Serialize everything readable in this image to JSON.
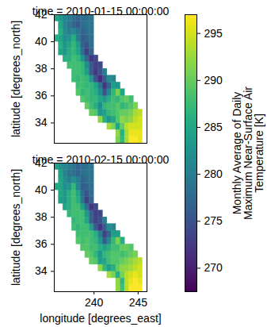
{
  "chart_data": {
    "type": "heatmap",
    "x_label": "longitude [degrees_east]",
    "y_label": "latitude [degrees_north]",
    "xlim": [
      235.5,
      246
    ],
    "ylim": [
      32.5,
      42
    ],
    "xticks": [
      240,
      245
    ],
    "yticks": [
      34,
      36,
      38,
      40,
      42
    ],
    "x": [
      235.75,
      236.25,
      236.75,
      237.25,
      237.75,
      238.25,
      238.75,
      239.25,
      239.75,
      240.25,
      240.75,
      241.25,
      241.75,
      242.25,
      242.75,
      243.25,
      243.75,
      244.25,
      244.75,
      245.25,
      245.75
    ],
    "y": [
      32.75,
      33.25,
      33.75,
      34.25,
      34.75,
      35.25,
      35.75,
      36.25,
      36.75,
      37.25,
      37.75,
      38.25,
      38.75,
      39.25,
      39.75,
      40.25,
      40.75,
      41.25,
      41.75
    ],
    "colorbar": {
      "label": "Monthly Average of Daily\nMaximum Near-Surface Air\nTemperature [K]",
      "range": [
        267.5,
        297
      ],
      "ticks": [
        270,
        275,
        280,
        285,
        290,
        295
      ],
      "color": "viridis"
    },
    "panels": [
      {
        "title": "time = 2010-01-15 00:00:00",
        "tick_labels": "y",
        "values": [
          [
            null,
            null,
            null,
            null,
            null,
            null,
            null,
            null,
            null,
            null,
            null,
            null,
            null,
            null,
            291,
            287,
            293,
            297,
            297,
            296,
            null
          ],
          [
            null,
            null,
            null,
            null,
            null,
            null,
            null,
            null,
            null,
            null,
            null,
            null,
            null,
            null,
            292,
            286,
            293,
            296,
            296,
            296,
            null
          ],
          [
            null,
            null,
            null,
            null,
            null,
            null,
            null,
            null,
            null,
            null,
            null,
            null,
            293,
            291,
            285,
            290,
            294,
            295,
            295,
            295,
            null
          ],
          [
            null,
            null,
            null,
            null,
            null,
            null,
            null,
            null,
            null,
            null,
            292,
            286,
            283,
            285,
            289,
            292,
            291,
            292,
            294,
            295,
            null
          ],
          [
            null,
            null,
            null,
            null,
            null,
            null,
            null,
            null,
            290,
            289,
            283,
            284,
            287,
            288,
            289,
            290,
            290,
            291,
            293,
            294,
            null
          ],
          [
            null,
            null,
            null,
            null,
            null,
            null,
            null,
            290,
            288,
            286,
            282,
            287,
            288,
            288,
            289,
            287,
            288,
            289,
            291,
            null,
            null
          ],
          [
            null,
            null,
            null,
            null,
            null,
            null,
            289,
            288,
            287,
            287,
            285,
            283,
            286,
            288,
            287,
            289,
            290,
            288,
            null,
            null,
            null
          ],
          [
            null,
            null,
            null,
            null,
            null,
            289,
            287,
            288,
            287,
            286,
            282,
            275,
            281,
            287,
            291,
            285,
            null,
            null,
            null,
            null,
            null
          ],
          [
            null,
            null,
            null,
            null,
            null,
            288,
            288,
            287,
            287,
            285,
            279,
            272,
            277,
            284,
            283,
            null,
            null,
            null,
            null,
            null,
            null
          ],
          [
            null,
            null,
            null,
            null,
            288,
            287,
            288,
            287,
            283,
            275,
            271,
            276,
            282,
            281,
            null,
            null,
            null,
            null,
            null,
            null,
            null
          ],
          [
            null,
            null,
            null,
            null,
            288,
            288,
            287,
            284,
            276,
            272,
            275,
            280,
            null,
            null,
            null,
            null,
            null,
            null,
            null,
            null,
            null
          ],
          [
            null,
            null,
            null,
            288,
            288,
            288,
            287,
            282,
            276,
            273,
            274,
            null,
            null,
            null,
            null,
            null,
            null,
            null,
            null,
            null,
            null
          ],
          [
            null,
            null,
            286,
            286,
            288,
            287,
            283,
            277,
            272,
            274,
            null,
            null,
            null,
            null,
            null,
            null,
            null,
            null,
            null,
            null,
            null
          ],
          [
            null,
            285,
            283,
            286,
            287,
            285,
            278,
            273,
            277,
            null,
            null,
            null,
            null,
            null,
            null,
            null,
            null,
            null,
            null,
            null,
            null
          ],
          [
            null,
            286,
            283,
            285,
            287,
            284,
            277,
            275,
            278,
            null,
            null,
            null,
            null,
            null,
            null,
            null,
            null,
            null,
            null,
            null,
            null
          ],
          [
            286,
            285,
            282,
            283,
            286,
            280,
            276,
            277,
            278,
            null,
            null,
            null,
            null,
            null,
            null,
            null,
            null,
            null,
            null,
            null,
            null
          ],
          [
            null,
            286,
            282,
            280,
            281,
            279,
            277,
            278,
            279,
            null,
            null,
            null,
            null,
            null,
            null,
            null,
            null,
            null,
            null,
            null,
            null
          ],
          [
            null,
            285,
            281,
            279,
            277,
            276,
            278,
            279,
            279,
            null,
            null,
            null,
            null,
            null,
            null,
            null,
            null,
            null,
            null,
            null,
            null
          ],
          [
            285,
            283,
            281,
            280,
            278,
            277,
            278,
            278,
            279,
            null,
            null,
            null,
            null,
            null,
            null,
            null,
            null,
            null,
            null,
            null,
            null
          ]
        ]
      },
      {
        "title": "time = 2010-02-15 00:00:00",
        "values": [
          [
            null,
            null,
            null,
            null,
            null,
            null,
            null,
            null,
            null,
            null,
            null,
            null,
            null,
            null,
            292,
            288,
            294,
            297,
            297,
            297,
            null
          ],
          [
            null,
            null,
            null,
            null,
            null,
            null,
            null,
            null,
            null,
            null,
            null,
            null,
            null,
            null,
            292,
            287,
            294,
            296,
            297,
            296,
            null
          ],
          [
            null,
            null,
            null,
            null,
            null,
            null,
            null,
            null,
            null,
            null,
            null,
            null,
            293,
            291,
            286,
            291,
            294,
            295,
            296,
            295,
            null
          ],
          [
            null,
            null,
            null,
            null,
            null,
            null,
            null,
            null,
            null,
            null,
            292,
            287,
            284,
            286,
            290,
            292,
            292,
            293,
            294,
            295,
            null
          ],
          [
            null,
            null,
            null,
            null,
            null,
            null,
            null,
            null,
            290,
            289,
            284,
            285,
            288,
            289,
            289,
            290,
            291,
            292,
            293,
            294,
            null
          ],
          [
            null,
            null,
            null,
            null,
            null,
            null,
            null,
            290,
            289,
            287,
            283,
            287,
            288,
            289,
            289,
            288,
            289,
            290,
            291,
            null,
            null
          ],
          [
            null,
            null,
            null,
            null,
            null,
            null,
            289,
            289,
            288,
            288,
            286,
            284,
            286,
            288,
            288,
            290,
            290,
            289,
            null,
            null,
            null
          ],
          [
            null,
            null,
            null,
            null,
            null,
            289,
            288,
            289,
            288,
            287,
            283,
            276,
            281,
            287,
            291,
            286,
            null,
            null,
            null,
            null,
            null
          ],
          [
            null,
            null,
            null,
            null,
            null,
            288,
            288,
            288,
            288,
            286,
            280,
            273,
            277,
            284,
            284,
            null,
            null,
            null,
            null,
            null,
            null
          ],
          [
            null,
            null,
            null,
            null,
            288,
            287,
            288,
            288,
            284,
            276,
            272,
            276,
            282,
            281,
            null,
            null,
            null,
            null,
            null,
            null,
            null
          ],
          [
            null,
            null,
            null,
            null,
            287,
            288,
            288,
            285,
            277,
            273,
            275,
            280,
            null,
            null,
            null,
            null,
            null,
            null,
            null,
            null,
            null
          ],
          [
            null,
            null,
            null,
            287,
            288,
            288,
            288,
            283,
            277,
            273,
            274,
            null,
            null,
            null,
            null,
            null,
            null,
            null,
            null,
            null,
            null
          ],
          [
            null,
            null,
            285,
            286,
            288,
            288,
            284,
            278,
            272,
            274,
            null,
            null,
            null,
            null,
            null,
            null,
            null,
            null,
            null,
            null,
            null
          ],
          [
            null,
            284,
            283,
            286,
            288,
            286,
            279,
            273,
            277,
            null,
            null,
            null,
            null,
            null,
            null,
            null,
            null,
            null,
            null,
            null,
            null
          ],
          [
            null,
            285,
            283,
            286,
            288,
            285,
            278,
            275,
            278,
            null,
            null,
            null,
            null,
            null,
            null,
            null,
            null,
            null,
            null,
            null,
            null
          ],
          [
            285,
            285,
            282,
            283,
            287,
            281,
            276,
            277,
            278,
            null,
            null,
            null,
            null,
            null,
            null,
            null,
            null,
            null,
            null,
            null,
            null
          ],
          [
            null,
            285,
            282,
            280,
            282,
            280,
            277,
            278,
            279,
            null,
            null,
            null,
            null,
            null,
            null,
            null,
            null,
            null,
            null,
            null,
            null
          ],
          [
            null,
            284,
            281,
            279,
            278,
            277,
            278,
            279,
            279,
            null,
            null,
            null,
            null,
            null,
            null,
            null,
            null,
            null,
            null,
            null,
            null
          ],
          [
            284,
            282,
            281,
            280,
            279,
            277,
            278,
            278,
            279,
            null,
            null,
            null,
            null,
            null,
            null,
            null,
            null,
            null,
            null,
            null,
            null
          ]
        ]
      }
    ]
  }
}
